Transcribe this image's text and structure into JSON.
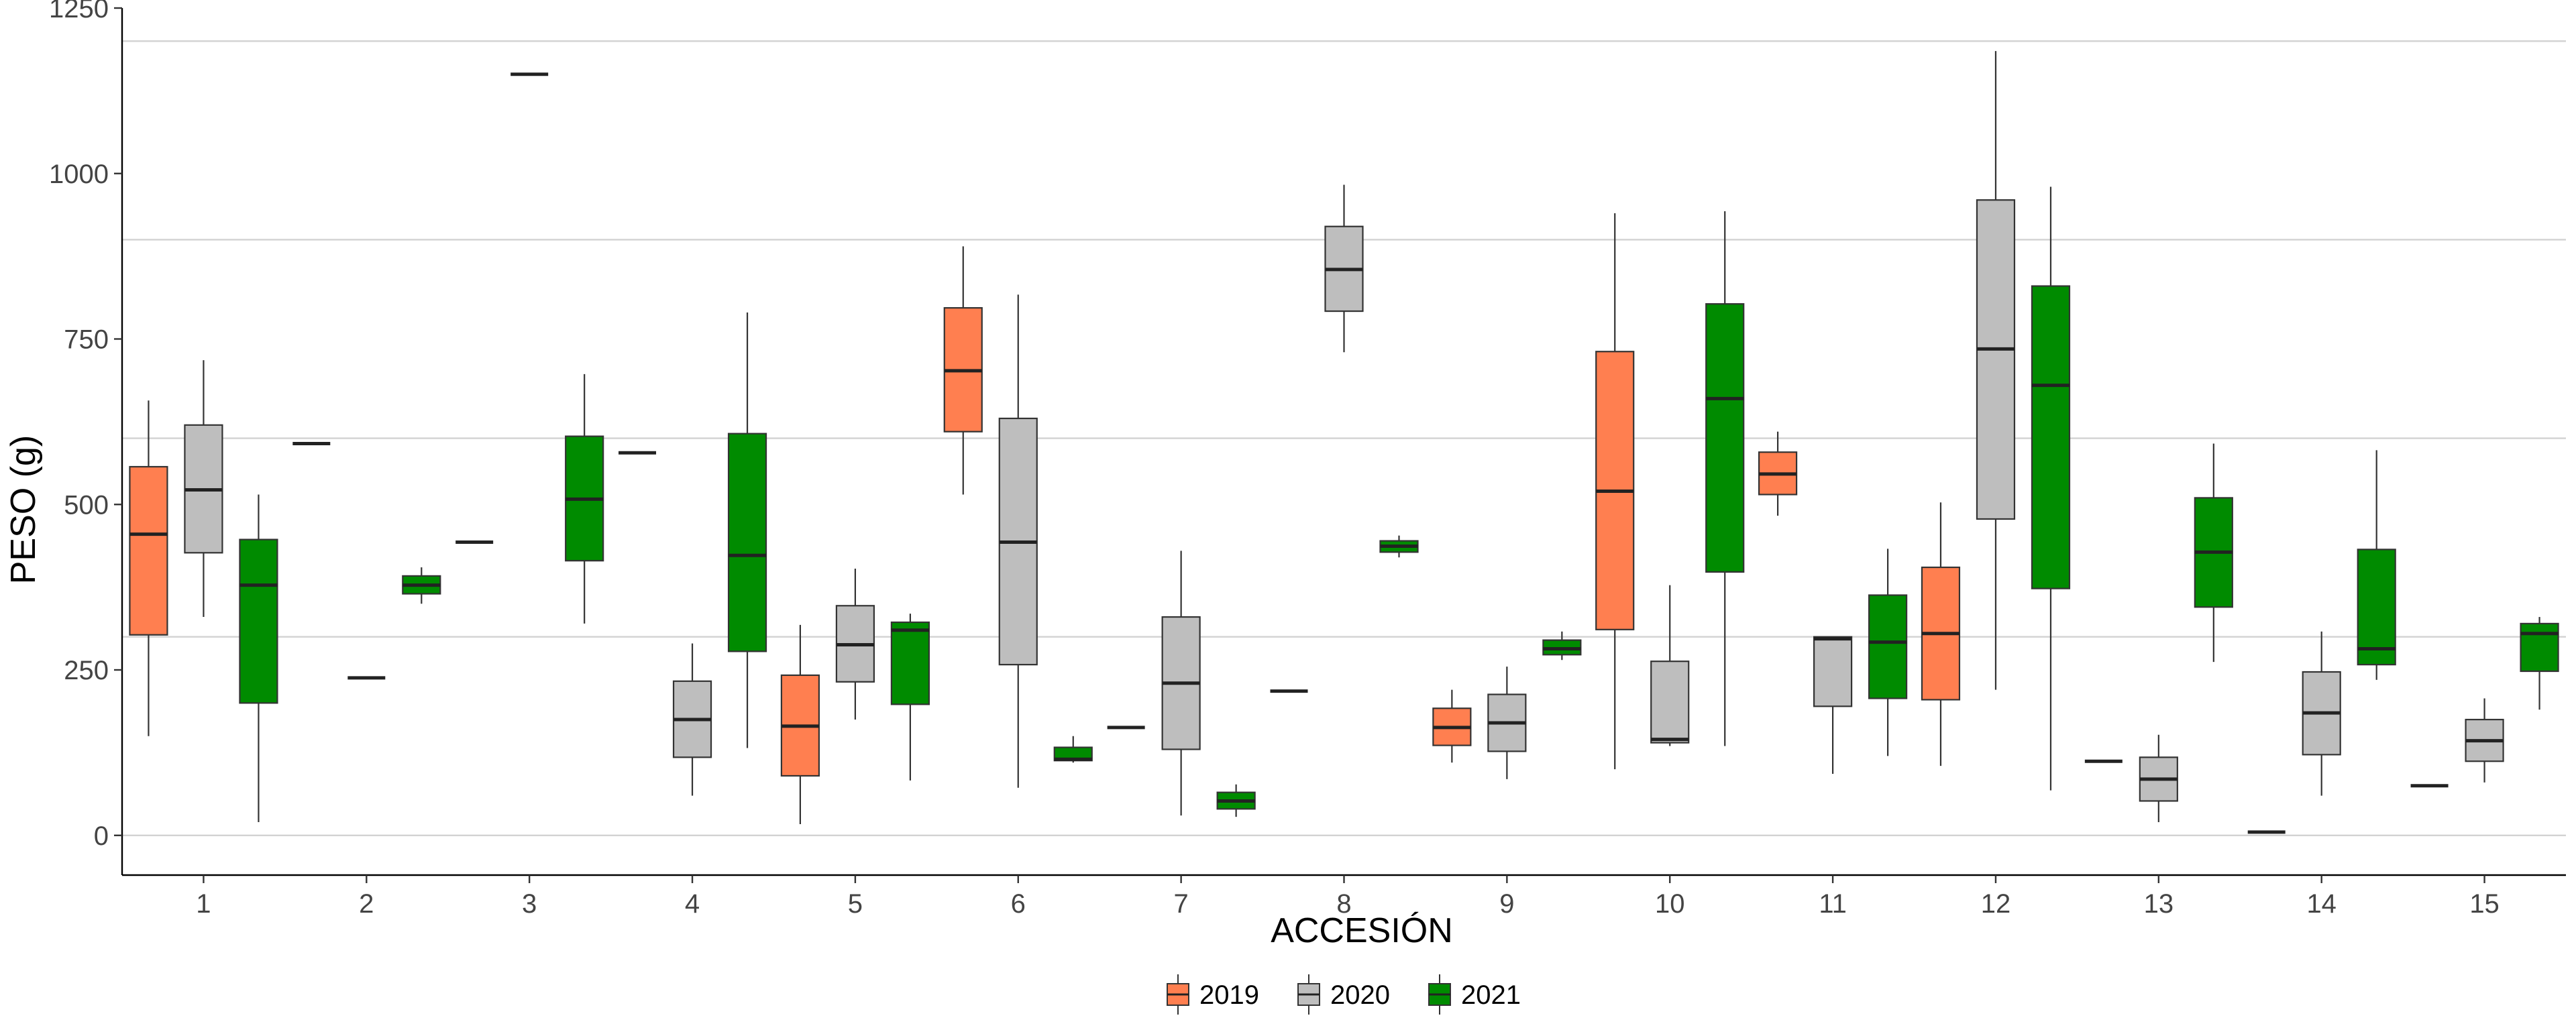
{
  "chart_data": {
    "type": "boxplot",
    "xlabel": "ACCESIÓN",
    "ylabel": "PESO (g)",
    "categories": [
      "1",
      "2",
      "3",
      "4",
      "5",
      "6",
      "7",
      "8",
      "9",
      "10",
      "11",
      "12",
      "13",
      "14",
      "15"
    ],
    "yticks": [
      0,
      250,
      500,
      750,
      1000,
      1250
    ],
    "ylim": [
      -60,
      1250
    ],
    "grid_lines": [
      0,
      300,
      600,
      900,
      1200
    ],
    "legend_position": "bottom",
    "series": [
      {
        "name": "2019",
        "color": "#FF7F50",
        "boxes": [
          {
            "category": "1",
            "min": 150,
            "q1": 303,
            "median": 455,
            "q3": 557,
            "max": 657
          },
          {
            "category": "2",
            "min": 592,
            "q1": 592,
            "median": 592,
            "q3": 592,
            "max": 592
          },
          {
            "category": "3",
            "min": 443,
            "q1": 443,
            "median": 443,
            "q3": 443,
            "max": 443
          },
          {
            "category": "4",
            "min": 578,
            "q1": 578,
            "median": 578,
            "q3": 578,
            "max": 578
          },
          {
            "category": "5",
            "min": 17,
            "q1": 90,
            "median": 165,
            "q3": 242,
            "max": 318
          },
          {
            "category": "6",
            "min": 515,
            "q1": 610,
            "median": 702,
            "q3": 797,
            "max": 890
          },
          {
            "category": "7",
            "min": 163,
            "q1": 163,
            "median": 163,
            "q3": 163,
            "max": 163
          },
          {
            "category": "8",
            "min": 218,
            "q1": 218,
            "median": 218,
            "q3": 218,
            "max": 218
          },
          {
            "category": "9",
            "min": 110,
            "q1": 136,
            "median": 163,
            "q3": 192,
            "max": 220
          },
          {
            "category": "10",
            "min": 100,
            "q1": 311,
            "median": 520,
            "q3": 731,
            "max": 940
          },
          {
            "category": "11",
            "min": 483,
            "q1": 515,
            "median": 546,
            "q3": 579,
            "max": 610
          },
          {
            "category": "12",
            "min": 105,
            "q1": 205,
            "median": 305,
            "q3": 405,
            "max": 503
          },
          {
            "category": "13",
            "min": 112,
            "q1": 112,
            "median": 112,
            "q3": 112,
            "max": 112
          },
          {
            "category": "14",
            "min": 5,
            "q1": 5,
            "median": 5,
            "q3": 5,
            "max": 5
          },
          {
            "category": "15",
            "min": 75,
            "q1": 75,
            "median": 75,
            "q3": 75,
            "max": 75
          }
        ]
      },
      {
        "name": "2020",
        "color": "#BEBEBE",
        "boxes": [
          {
            "category": "1",
            "min": 330,
            "q1": 427,
            "median": 522,
            "q3": 620,
            "max": 718
          },
          {
            "category": "2",
            "min": 238,
            "q1": 238,
            "median": 238,
            "q3": 238,
            "max": 238
          },
          {
            "category": "3",
            "min": 1150,
            "q1": 1150,
            "median": 1150,
            "q3": 1150,
            "max": 1150
          },
          {
            "category": "4",
            "min": 60,
            "q1": 118,
            "median": 175,
            "q3": 233,
            "max": 290
          },
          {
            "category": "5",
            "min": 175,
            "q1": 232,
            "median": 288,
            "q3": 347,
            "max": 403
          },
          {
            "category": "6",
            "min": 72,
            "q1": 258,
            "median": 443,
            "q3": 630,
            "max": 817
          },
          {
            "category": "7",
            "min": 30,
            "q1": 130,
            "median": 230,
            "q3": 330,
            "max": 430
          },
          {
            "category": "8",
            "min": 730,
            "q1": 792,
            "median": 855,
            "q3": 920,
            "max": 983
          },
          {
            "category": "9",
            "min": 85,
            "q1": 127,
            "median": 170,
            "q3": 213,
            "max": 255
          },
          {
            "category": "10",
            "min": 135,
            "q1": 140,
            "median": 145,
            "q3": 263,
            "max": 378
          },
          {
            "category": "11",
            "min": 93,
            "q1": 195,
            "median": 297,
            "q3": 300,
            "max": 300
          },
          {
            "category": "12",
            "min": 220,
            "q1": 478,
            "median": 735,
            "q3": 960,
            "max": 1185
          },
          {
            "category": "13",
            "min": 20,
            "q1": 52,
            "median": 85,
            "q3": 118,
            "max": 152
          },
          {
            "category": "14",
            "min": 60,
            "q1": 122,
            "median": 185,
            "q3": 247,
            "max": 308
          },
          {
            "category": "15",
            "min": 80,
            "q1": 112,
            "median": 143,
            "q3": 175,
            "max": 207
          }
        ]
      },
      {
        "name": "2021",
        "color": "#008B00",
        "boxes": [
          {
            "category": "1",
            "min": 20,
            "q1": 200,
            "median": 378,
            "q3": 447,
            "max": 515
          },
          {
            "category": "2",
            "min": 350,
            "q1": 365,
            "median": 378,
            "q3": 392,
            "max": 405
          },
          {
            "category": "3",
            "min": 320,
            "q1": 415,
            "median": 508,
            "q3": 603,
            "max": 697
          },
          {
            "category": "4",
            "min": 132,
            "q1": 278,
            "median": 423,
            "q3": 607,
            "max": 790
          },
          {
            "category": "5",
            "min": 83,
            "q1": 198,
            "median": 310,
            "q3": 322,
            "max": 335
          },
          {
            "category": "6",
            "min": 110,
            "q1": 113,
            "median": 115,
            "q3": 133,
            "max": 150
          },
          {
            "category": "7",
            "min": 28,
            "q1": 40,
            "median": 52,
            "q3": 65,
            "max": 77
          },
          {
            "category": "8",
            "min": 420,
            "q1": 428,
            "median": 437,
            "q3": 445,
            "max": 453
          },
          {
            "category": "9",
            "min": 265,
            "q1": 273,
            "median": 282,
            "q3": 295,
            "max": 308
          },
          {
            "category": "10",
            "min": 135,
            "q1": 398,
            "median": 660,
            "q3": 803,
            "max": 943
          },
          {
            "category": "11",
            "min": 120,
            "q1": 207,
            "median": 292,
            "q3": 363,
            "max": 433
          },
          {
            "category": "12",
            "min": 68,
            "q1": 373,
            "median": 680,
            "q3": 830,
            "max": 980
          },
          {
            "category": "13",
            "min": 262,
            "q1": 345,
            "median": 428,
            "q3": 510,
            "max": 592
          },
          {
            "category": "14",
            "min": 235,
            "q1": 258,
            "median": 282,
            "q3": 432,
            "max": 582
          },
          {
            "category": "15",
            "min": 190,
            "q1": 248,
            "median": 305,
            "q3": 320,
            "max": 330
          }
        ]
      }
    ]
  }
}
